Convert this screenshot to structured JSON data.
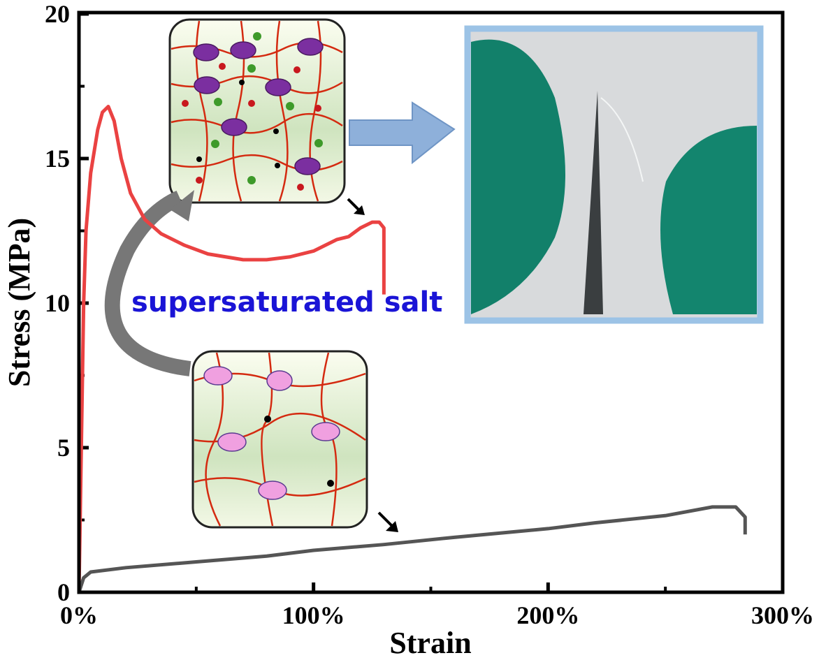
{
  "chart_data": {
    "type": "line",
    "x_label": "Strain",
    "y_label": "Stress (MPa)",
    "annotations": [
      "supersaturated salt"
    ],
    "xlim": [
      0,
      300
    ],
    "ylim": [
      0,
      20
    ],
    "xticks": [
      {
        "value": 0,
        "label": "0%"
      },
      {
        "value": 100,
        "label": "100%"
      },
      {
        "value": 200,
        "label": "200%"
      },
      {
        "value": 300,
        "label": "300%"
      }
    ],
    "yticks": [
      0,
      5,
      10,
      15,
      20
    ],
    "series": [
      {
        "color": "#ea4242",
        "x": [
          0,
          1,
          2,
          3,
          5,
          8,
          10,
          12.5,
          15,
          18,
          22,
          28,
          35,
          45,
          55,
          70,
          80,
          90,
          100,
          110,
          115,
          120,
          125,
          128,
          130,
          130
        ],
        "values": [
          0,
          5,
          10,
          12.5,
          14.5,
          16,
          16.6,
          16.8,
          16.3,
          15,
          13.8,
          12.9,
          12.4,
          12,
          11.7,
          11.5,
          11.5,
          11.6,
          11.8,
          12.2,
          12.3,
          12.6,
          12.8,
          12.8,
          12.6,
          10.3
        ]
      },
      {
        "color": "#555555",
        "x": [
          0,
          2,
          5,
          20,
          50,
          80,
          100,
          130,
          160,
          200,
          220,
          250,
          270,
          280,
          284,
          284
        ],
        "values": [
          0,
          0.5,
          0.7,
          0.85,
          1.05,
          1.25,
          1.45,
          1.65,
          1.9,
          2.2,
          2.4,
          2.65,
          2.95,
          2.95,
          2.6,
          2
        ]
      }
    ]
  }
}
